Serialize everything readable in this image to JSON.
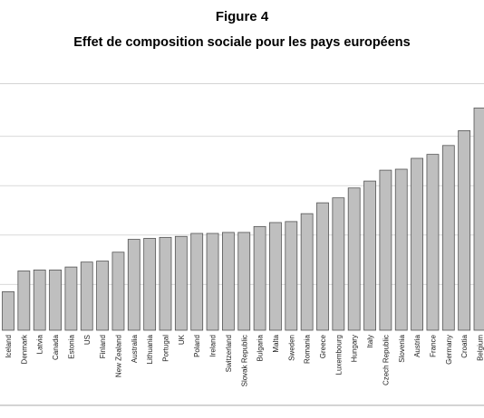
{
  "figure_number": "Figure 4",
  "figure_title": "Effet de composition sociale pour les pays européens",
  "chart_data": {
    "type": "bar",
    "categories": [
      "Iceland",
      "Denmark",
      "Latvia",
      "Canada",
      "Estonia",
      "US",
      "Finland",
      "New Zealand",
      "Australia",
      "Lithuania",
      "Portugal",
      "UK",
      "Poland",
      "Ireland",
      "Switzerland",
      "Slovak Republic",
      "Bulgaria",
      "Malta",
      "Sweden",
      "Romania",
      "Greece",
      "Luxembourg",
      "Hungary",
      "Italy",
      "Czech Republic",
      "Slovenia",
      "Austria",
      "France",
      "Germany",
      "Croatia",
      "Belgium"
    ],
    "series": [
      {
        "values": [
          0.39,
          0.6,
          0.61,
          0.61,
          0.64,
          0.69,
          0.7,
          0.79,
          0.92,
          0.93,
          0.94,
          0.95,
          0.98,
          0.98,
          0.99,
          0.99,
          1.05,
          1.09,
          1.1,
          1.18,
          1.29,
          1.34,
          1.44,
          1.51,
          1.62,
          1.63,
          1.74,
          1.78,
          1.87,
          2.02,
          2.25
        ]
      }
    ],
    "ylim": [
      0,
      2.5
    ],
    "grid": true,
    "colors": {
      "bar_fill": "#bfbfbf",
      "bar_stroke": "#555555",
      "grid": "#d9d9d9",
      "frame": "#aaaaaa"
    }
  }
}
